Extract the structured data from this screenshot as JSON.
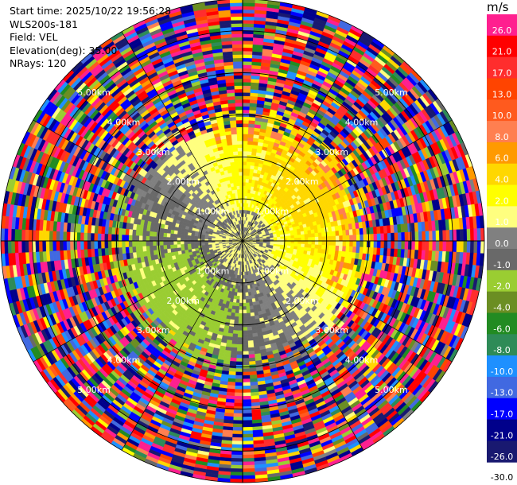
{
  "info": {
    "start_time": "Start time: 2025/10/22 19:56:28",
    "instrument": "WLS200s-181",
    "field": "Field: VEL",
    "elevation": "Elevation(deg): 35.00",
    "nrays": "NRays: 120"
  },
  "colorbar": {
    "unit": "m/s",
    "bins": [
      {
        "label": "26.0",
        "color": "#ff1f8f"
      },
      {
        "label": "21.0",
        "color": "#ff0000"
      },
      {
        "label": "17.0",
        "color": "#ff2d2d"
      },
      {
        "label": "13.0",
        "color": "#ff4400"
      },
      {
        "label": "10.0",
        "color": "#ff5a1e"
      },
      {
        "label": "8.0",
        "color": "#ff7f50"
      },
      {
        "label": "6.0",
        "color": "#ff9a00"
      },
      {
        "label": "4.0",
        "color": "#ffd700"
      },
      {
        "label": "2.0",
        "color": "#ffff00"
      },
      {
        "label": "1.0",
        "color": "#ffff7f"
      },
      {
        "label": "0.0",
        "color": "#808080"
      },
      {
        "label": "-1.0",
        "color": "#696969"
      },
      {
        "label": "-2.0",
        "color": "#9acd32"
      },
      {
        "label": "-4.0",
        "color": "#6b8e23"
      },
      {
        "label": "-6.0",
        "color": "#228b22"
      },
      {
        "label": "-8.0",
        "color": "#2e8b57"
      },
      {
        "label": "-10.0",
        "color": "#1e90ff"
      },
      {
        "label": "-13.0",
        "color": "#4169e1"
      },
      {
        "label": "-17.0",
        "color": "#0000ff"
      },
      {
        "label": "-21.0",
        "color": "#00008b"
      },
      {
        "label": "-26.0",
        "color": "#191970"
      },
      {
        "label": "-30.0",
        "color": ""
      }
    ]
  },
  "chart_data": {
    "type": "heatmap",
    "subtype": "ppi-polar",
    "field": "VEL",
    "units": "m/s",
    "elevation_deg": 35.0,
    "nrays": 120,
    "range_rings": [
      {
        "label": "1.00km",
        "km": 1.0
      },
      {
        "label": "2.00km",
        "km": 2.0
      },
      {
        "label": "3.00km",
        "km": 3.0
      },
      {
        "label": "4.00km",
        "km": 4.0
      },
      {
        "label": "5.00km",
        "km": 5.0
      }
    ],
    "max_range_km": 5.75,
    "ring_label_angles_deg": [
      45,
      135,
      225,
      315
    ],
    "spoke_step_deg": 30,
    "pattern_regions": [
      {
        "description": "near-zero velocities",
        "r_km": [
          0,
          1.2
        ],
        "value": 0.0
      },
      {
        "description": "positive (receding) wind, north-east",
        "r_km": [
          1.0,
          2.6
        ],
        "value": 2.0
      },
      {
        "description": "negative (approaching) wind, south-west",
        "r_km": [
          0.5,
          2.6
        ],
        "value": -2.0
      },
      {
        "description": "noise ring beyond signal range",
        "r_km": [
          3.0,
          5.75
        ],
        "value": "random"
      }
    ]
  }
}
